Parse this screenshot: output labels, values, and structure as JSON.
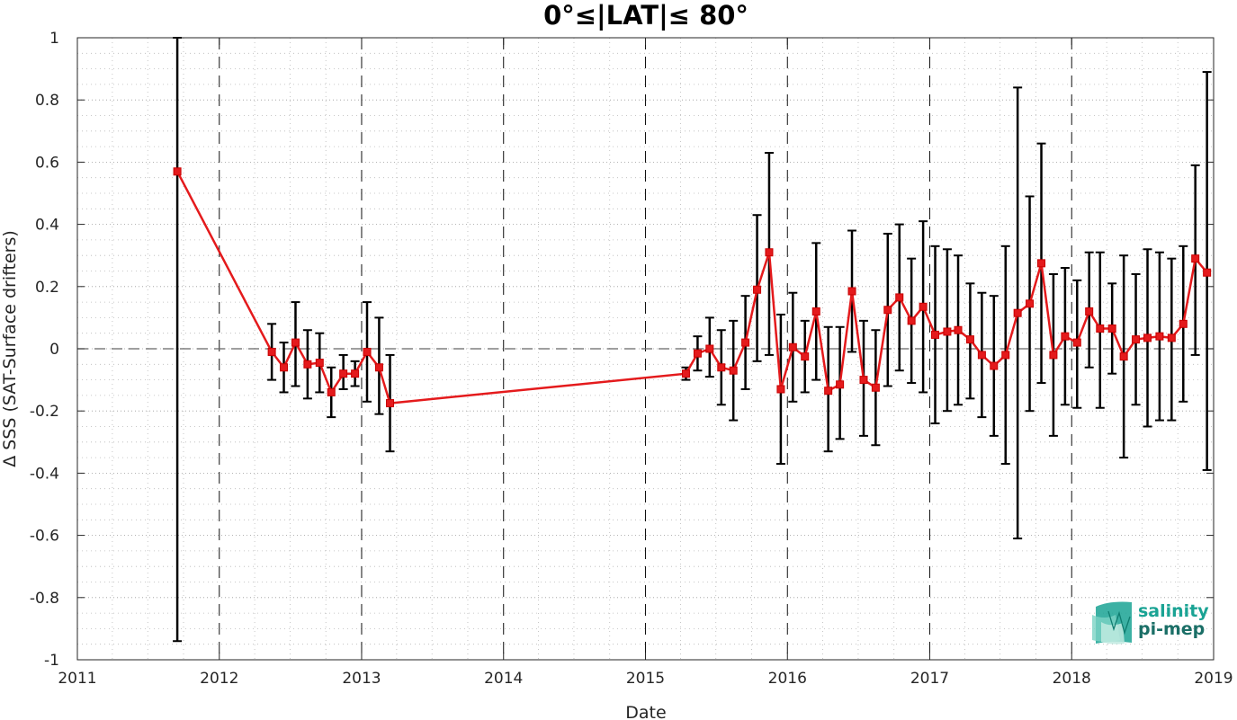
{
  "chart_data": {
    "type": "line",
    "title": "0°≤|LAT|≤ 80°",
    "xlabel": "Date",
    "ylabel": "Δ SSS (SAT-Surface drifters)",
    "xlim": [
      "2011-01-01",
      "2019-01-01"
    ],
    "ylim": [
      -1,
      1
    ],
    "x_ticks": [
      "2011",
      "2012",
      "2013",
      "2014",
      "2015",
      "2016",
      "2017",
      "2018",
      "2019"
    ],
    "y_ticks": [
      "-1",
      "-0.8",
      "-0.6",
      "-0.4",
      "-0.2",
      "0",
      "0.2",
      "0.4",
      "0.6",
      "0.8",
      "1"
    ],
    "grid": "on",
    "reference_line_y": 0,
    "colors": {
      "line": "#e41a1c",
      "errorbar": "#000000",
      "zero_line": "#666666",
      "logo": "#1aa394"
    },
    "series": [
      {
        "points": [
          {
            "date": "2011-09-15",
            "y": 0.57,
            "lo": -0.94,
            "hi": 1.0
          },
          {
            "date": "2012-05-15",
            "y": -0.01,
            "lo": -0.1,
            "hi": 0.08
          },
          {
            "date": "2012-06-15",
            "y": -0.06,
            "lo": -0.14,
            "hi": 0.02
          },
          {
            "date": "2012-07-15",
            "y": 0.02,
            "lo": -0.12,
            "hi": 0.15
          },
          {
            "date": "2012-08-15",
            "y": -0.05,
            "lo": -0.16,
            "hi": 0.06
          },
          {
            "date": "2012-09-15",
            "y": -0.045,
            "lo": -0.14,
            "hi": 0.05
          },
          {
            "date": "2012-10-15",
            "y": -0.14,
            "lo": -0.22,
            "hi": -0.06
          },
          {
            "date": "2012-11-15",
            "y": -0.08,
            "lo": -0.13,
            "hi": -0.02
          },
          {
            "date": "2012-12-15",
            "y": -0.08,
            "lo": -0.12,
            "hi": -0.04
          },
          {
            "date": "2013-01-15",
            "y": -0.01,
            "lo": -0.17,
            "hi": 0.15
          },
          {
            "date": "2013-02-15",
            "y": -0.06,
            "lo": -0.21,
            "hi": 0.1
          },
          {
            "date": "2013-03-15",
            "y": -0.175,
            "lo": -0.33,
            "hi": -0.02
          },
          {
            "date": "2015-04-15",
            "y": -0.08,
            "lo": -0.1,
            "hi": -0.06
          },
          {
            "date": "2015-05-15",
            "y": -0.015,
            "lo": -0.07,
            "hi": 0.04
          },
          {
            "date": "2015-06-15",
            "y": 0.0,
            "lo": -0.09,
            "hi": 0.1
          },
          {
            "date": "2015-07-15",
            "y": -0.06,
            "lo": -0.18,
            "hi": 0.06
          },
          {
            "date": "2015-08-15",
            "y": -0.07,
            "lo": -0.23,
            "hi": 0.09
          },
          {
            "date": "2015-09-15",
            "y": 0.02,
            "lo": -0.13,
            "hi": 0.17
          },
          {
            "date": "2015-10-15",
            "y": 0.19,
            "lo": -0.04,
            "hi": 0.43
          },
          {
            "date": "2015-11-15",
            "y": 0.31,
            "lo": -0.02,
            "hi": 0.63
          },
          {
            "date": "2015-12-15",
            "y": -0.13,
            "lo": -0.37,
            "hi": 0.11
          },
          {
            "date": "2016-01-15",
            "y": 0.005,
            "lo": -0.17,
            "hi": 0.18
          },
          {
            "date": "2016-02-15",
            "y": -0.025,
            "lo": -0.14,
            "hi": 0.09
          },
          {
            "date": "2016-03-15",
            "y": 0.12,
            "lo": -0.1,
            "hi": 0.34
          },
          {
            "date": "2016-04-15",
            "y": -0.135,
            "lo": -0.33,
            "hi": 0.07
          },
          {
            "date": "2016-05-15",
            "y": -0.115,
            "lo": -0.29,
            "hi": 0.07
          },
          {
            "date": "2016-06-15",
            "y": 0.185,
            "lo": -0.01,
            "hi": 0.38
          },
          {
            "date": "2016-07-15",
            "y": -0.1,
            "lo": -0.28,
            "hi": 0.09
          },
          {
            "date": "2016-08-15",
            "y": -0.125,
            "lo": -0.31,
            "hi": 0.06
          },
          {
            "date": "2016-09-15",
            "y": 0.125,
            "lo": -0.12,
            "hi": 0.37
          },
          {
            "date": "2016-10-15",
            "y": 0.165,
            "lo": -0.07,
            "hi": 0.4
          },
          {
            "date": "2016-11-15",
            "y": 0.09,
            "lo": -0.11,
            "hi": 0.29
          },
          {
            "date": "2016-12-15",
            "y": 0.135,
            "lo": -0.14,
            "hi": 0.41
          },
          {
            "date": "2017-01-15",
            "y": 0.045,
            "lo": -0.24,
            "hi": 0.33
          },
          {
            "date": "2017-02-15",
            "y": 0.055,
            "lo": -0.2,
            "hi": 0.32
          },
          {
            "date": "2017-03-15",
            "y": 0.06,
            "lo": -0.18,
            "hi": 0.3
          },
          {
            "date": "2017-04-15",
            "y": 0.03,
            "lo": -0.16,
            "hi": 0.21
          },
          {
            "date": "2017-05-15",
            "y": -0.02,
            "lo": -0.22,
            "hi": 0.18
          },
          {
            "date": "2017-06-15",
            "y": -0.055,
            "lo": -0.28,
            "hi": 0.17
          },
          {
            "date": "2017-07-15",
            "y": -0.02,
            "lo": -0.37,
            "hi": 0.33
          },
          {
            "date": "2017-08-15",
            "y": 0.115,
            "lo": -0.61,
            "hi": 0.84
          },
          {
            "date": "2017-09-15",
            "y": 0.145,
            "lo": -0.2,
            "hi": 0.49
          },
          {
            "date": "2017-10-15",
            "y": 0.275,
            "lo": -0.11,
            "hi": 0.66
          },
          {
            "date": "2017-11-15",
            "y": -0.02,
            "lo": -0.28,
            "hi": 0.24
          },
          {
            "date": "2017-12-15",
            "y": 0.04,
            "lo": -0.18,
            "hi": 0.26
          },
          {
            "date": "2018-01-15",
            "y": 0.02,
            "lo": -0.19,
            "hi": 0.22
          },
          {
            "date": "2018-02-15",
            "y": 0.12,
            "lo": -0.06,
            "hi": 0.31
          },
          {
            "date": "2018-03-15",
            "y": 0.065,
            "lo": -0.19,
            "hi": 0.31
          },
          {
            "date": "2018-04-15",
            "y": 0.065,
            "lo": -0.08,
            "hi": 0.21
          },
          {
            "date": "2018-05-15",
            "y": -0.025,
            "lo": -0.35,
            "hi": 0.3
          },
          {
            "date": "2018-06-15",
            "y": 0.03,
            "lo": -0.18,
            "hi": 0.24
          },
          {
            "date": "2018-07-15",
            "y": 0.035,
            "lo": -0.25,
            "hi": 0.32
          },
          {
            "date": "2018-08-15",
            "y": 0.04,
            "lo": -0.23,
            "hi": 0.31
          },
          {
            "date": "2018-09-15",
            "y": 0.035,
            "lo": -0.23,
            "hi": 0.29
          },
          {
            "date": "2018-10-15",
            "y": 0.08,
            "lo": -0.17,
            "hi": 0.33
          },
          {
            "date": "2018-11-15",
            "y": 0.29,
            "lo": -0.02,
            "hi": 0.59
          },
          {
            "date": "2018-12-15",
            "y": 0.245,
            "lo": -0.39,
            "hi": 0.89
          }
        ]
      }
    ]
  },
  "logo": {
    "line1": "salinity",
    "line2": "pi-mep"
  }
}
